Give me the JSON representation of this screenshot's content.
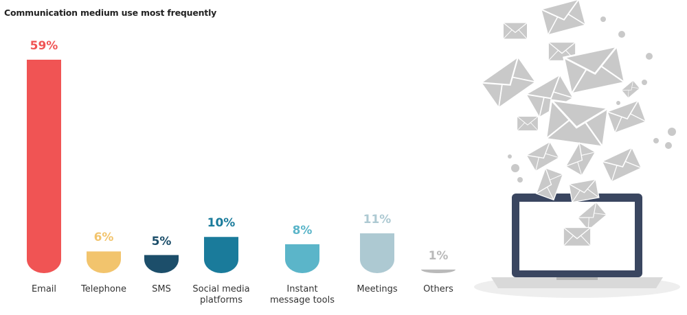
{
  "chart_data": {
    "type": "bar",
    "title": "Communication medium use most frequently",
    "categories": [
      "Email",
      "Telephone",
      "SMS",
      "Social media platforms",
      "Instant message tools",
      "Meetings",
      "Others"
    ],
    "values": [
      59,
      6,
      5,
      10,
      8,
      11,
      1
    ],
    "value_labels": [
      "59%",
      "6%",
      "5%",
      "10%",
      "8%",
      "11%",
      "1%"
    ],
    "colors": [
      "#f05454",
      "#f2c46d",
      "#1c4e6a",
      "#1a7b9b",
      "#5bb5c9",
      "#adc9d2",
      "#b9b9b9"
    ]
  }
}
